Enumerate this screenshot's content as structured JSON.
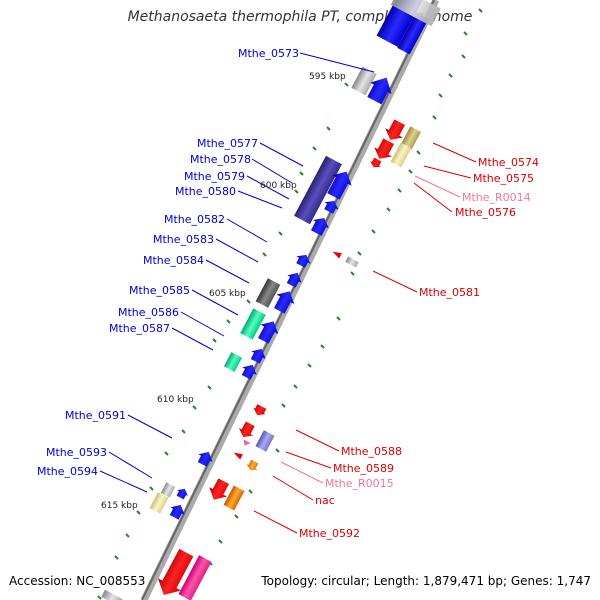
{
  "title": "Methanosaeta thermophila PT, complete genome",
  "footer": {
    "accession": "Accession: NC_008553",
    "topology": "Topology: circular; Length: 1,879,471 bp; Genes: 1,747"
  },
  "colors": {
    "forward_gene": "#0000ee",
    "reverse_gene": "#ee0000",
    "rna": "#ee6699",
    "backbone": "#999999",
    "tick": "#228822",
    "forward_label": "#0000cc",
    "reverse_label": "#dd0000",
    "rna_label": "#ee7799"
  },
  "scale_labels": [
    "595 kbp",
    "600 kbp",
    "605 kbp",
    "610 kbp",
    "615 kbp"
  ],
  "forward_labels": [
    "Mthe_0573",
    "Mthe_0577",
    "Mthe_0578",
    "Mthe_0579",
    "Mthe_0580",
    "Mthe_0582",
    "Mthe_0583",
    "Mthe_0584",
    "Mthe_0585",
    "Mthe_0586",
    "Mthe_0587",
    "Mthe_0591",
    "Mthe_0593",
    "Mthe_0594"
  ],
  "reverse_labels": [
    "Mthe_0574",
    "Mthe_0575",
    "Mthe_R0014",
    "Mthe_0576",
    "Mthe_0581",
    "Mthe_0588",
    "Mthe_0589",
    "Mthe_R0015",
    "nac",
    "Mthe_0592"
  ]
}
